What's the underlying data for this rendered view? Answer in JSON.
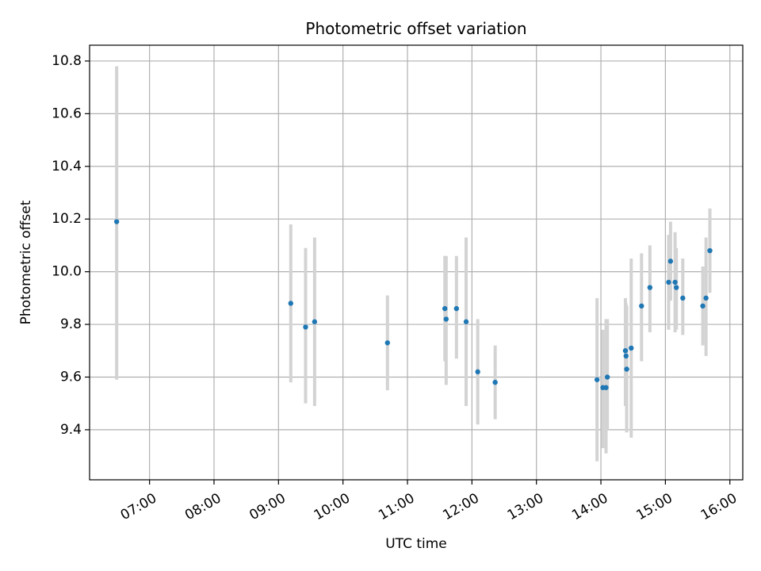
{
  "chart_data": {
    "type": "scatter",
    "title": "Photometric offset variation",
    "xlabel": "UTC time",
    "ylabel": "Photometric offset",
    "x_unit": "hours UTC (fractional)",
    "xlim": [
      6.07,
      16.2
    ],
    "ylim": [
      9.21,
      10.86
    ],
    "grid": true,
    "legend": "none",
    "x_ticks": [
      {
        "value": 7,
        "label": "07:00"
      },
      {
        "value": 8,
        "label": "08:00"
      },
      {
        "value": 9,
        "label": "09:00"
      },
      {
        "value": 10,
        "label": "10:00"
      },
      {
        "value": 11,
        "label": "11:00"
      },
      {
        "value": 12,
        "label": "12:00"
      },
      {
        "value": 13,
        "label": "13:00"
      },
      {
        "value": 14,
        "label": "14:00"
      },
      {
        "value": 15,
        "label": "15:00"
      },
      {
        "value": 16,
        "label": "16:00"
      }
    ],
    "y_ticks": [
      {
        "value": 9.4,
        "label": "9.4"
      },
      {
        "value": 9.6,
        "label": "9.6"
      },
      {
        "value": 9.8,
        "label": "9.8"
      },
      {
        "value": 10.0,
        "label": "10.0"
      },
      {
        "value": 10.2,
        "label": "10.2"
      },
      {
        "value": 10.4,
        "label": "10.4"
      },
      {
        "value": 10.6,
        "label": "10.6"
      },
      {
        "value": 10.8,
        "label": "10.8"
      }
    ],
    "point_color": "#1f77b4",
    "errorbar_color": "#d3d3d3",
    "points": [
      {
        "x": 6.49,
        "y": 10.19,
        "ylow": 9.59,
        "yhigh": 10.78
      },
      {
        "x": 9.19,
        "y": 9.88,
        "ylow": 9.58,
        "yhigh": 10.18
      },
      {
        "x": 9.42,
        "y": 9.79,
        "ylow": 9.5,
        "yhigh": 10.09
      },
      {
        "x": 9.56,
        "y": 9.81,
        "ylow": 9.49,
        "yhigh": 10.13
      },
      {
        "x": 10.69,
        "y": 9.73,
        "ylow": 9.55,
        "yhigh": 9.91
      },
      {
        "x": 11.58,
        "y": 9.86,
        "ylow": 9.66,
        "yhigh": 10.06
      },
      {
        "x": 11.6,
        "y": 9.82,
        "ylow": 9.57,
        "yhigh": 10.06
      },
      {
        "x": 11.76,
        "y": 9.86,
        "ylow": 9.67,
        "yhigh": 10.06
      },
      {
        "x": 11.91,
        "y": 9.81,
        "ylow": 9.49,
        "yhigh": 10.13
      },
      {
        "x": 12.09,
        "y": 9.62,
        "ylow": 9.42,
        "yhigh": 9.82
      },
      {
        "x": 12.36,
        "y": 9.58,
        "ylow": 9.44,
        "yhigh": 9.72
      },
      {
        "x": 13.94,
        "y": 9.59,
        "ylow": 9.28,
        "yhigh": 9.9
      },
      {
        "x": 14.03,
        "y": 9.56,
        "ylow": 9.33,
        "yhigh": 9.78
      },
      {
        "x": 14.08,
        "y": 9.56,
        "ylow": 9.31,
        "yhigh": 9.82
      },
      {
        "x": 14.1,
        "y": 9.6,
        "ylow": 9.4,
        "yhigh": 9.82
      },
      {
        "x": 14.38,
        "y": 9.7,
        "ylow": 9.49,
        "yhigh": 9.9
      },
      {
        "x": 14.39,
        "y": 9.68,
        "ylow": 9.49,
        "yhigh": 9.88
      },
      {
        "x": 14.4,
        "y": 9.63,
        "ylow": 9.39,
        "yhigh": 9.87
      },
      {
        "x": 14.47,
        "y": 9.71,
        "ylow": 9.37,
        "yhigh": 10.05
      },
      {
        "x": 14.63,
        "y": 9.87,
        "ylow": 9.66,
        "yhigh": 10.07
      },
      {
        "x": 14.76,
        "y": 9.94,
        "ylow": 9.77,
        "yhigh": 10.1
      },
      {
        "x": 15.05,
        "y": 9.96,
        "ylow": 9.78,
        "yhigh": 10.14
      },
      {
        "x": 15.08,
        "y": 10.04,
        "ylow": 9.89,
        "yhigh": 10.19
      },
      {
        "x": 15.15,
        "y": 9.96,
        "ylow": 9.77,
        "yhigh": 10.15
      },
      {
        "x": 15.17,
        "y": 9.94,
        "ylow": 9.78,
        "yhigh": 10.09
      },
      {
        "x": 15.27,
        "y": 9.9,
        "ylow": 9.76,
        "yhigh": 10.05
      },
      {
        "x": 15.58,
        "y": 9.87,
        "ylow": 9.72,
        "yhigh": 10.02
      },
      {
        "x": 15.63,
        "y": 9.9,
        "ylow": 9.68,
        "yhigh": 10.13
      },
      {
        "x": 15.69,
        "y": 10.08,
        "ylow": 9.92,
        "yhigh": 10.24
      }
    ]
  }
}
